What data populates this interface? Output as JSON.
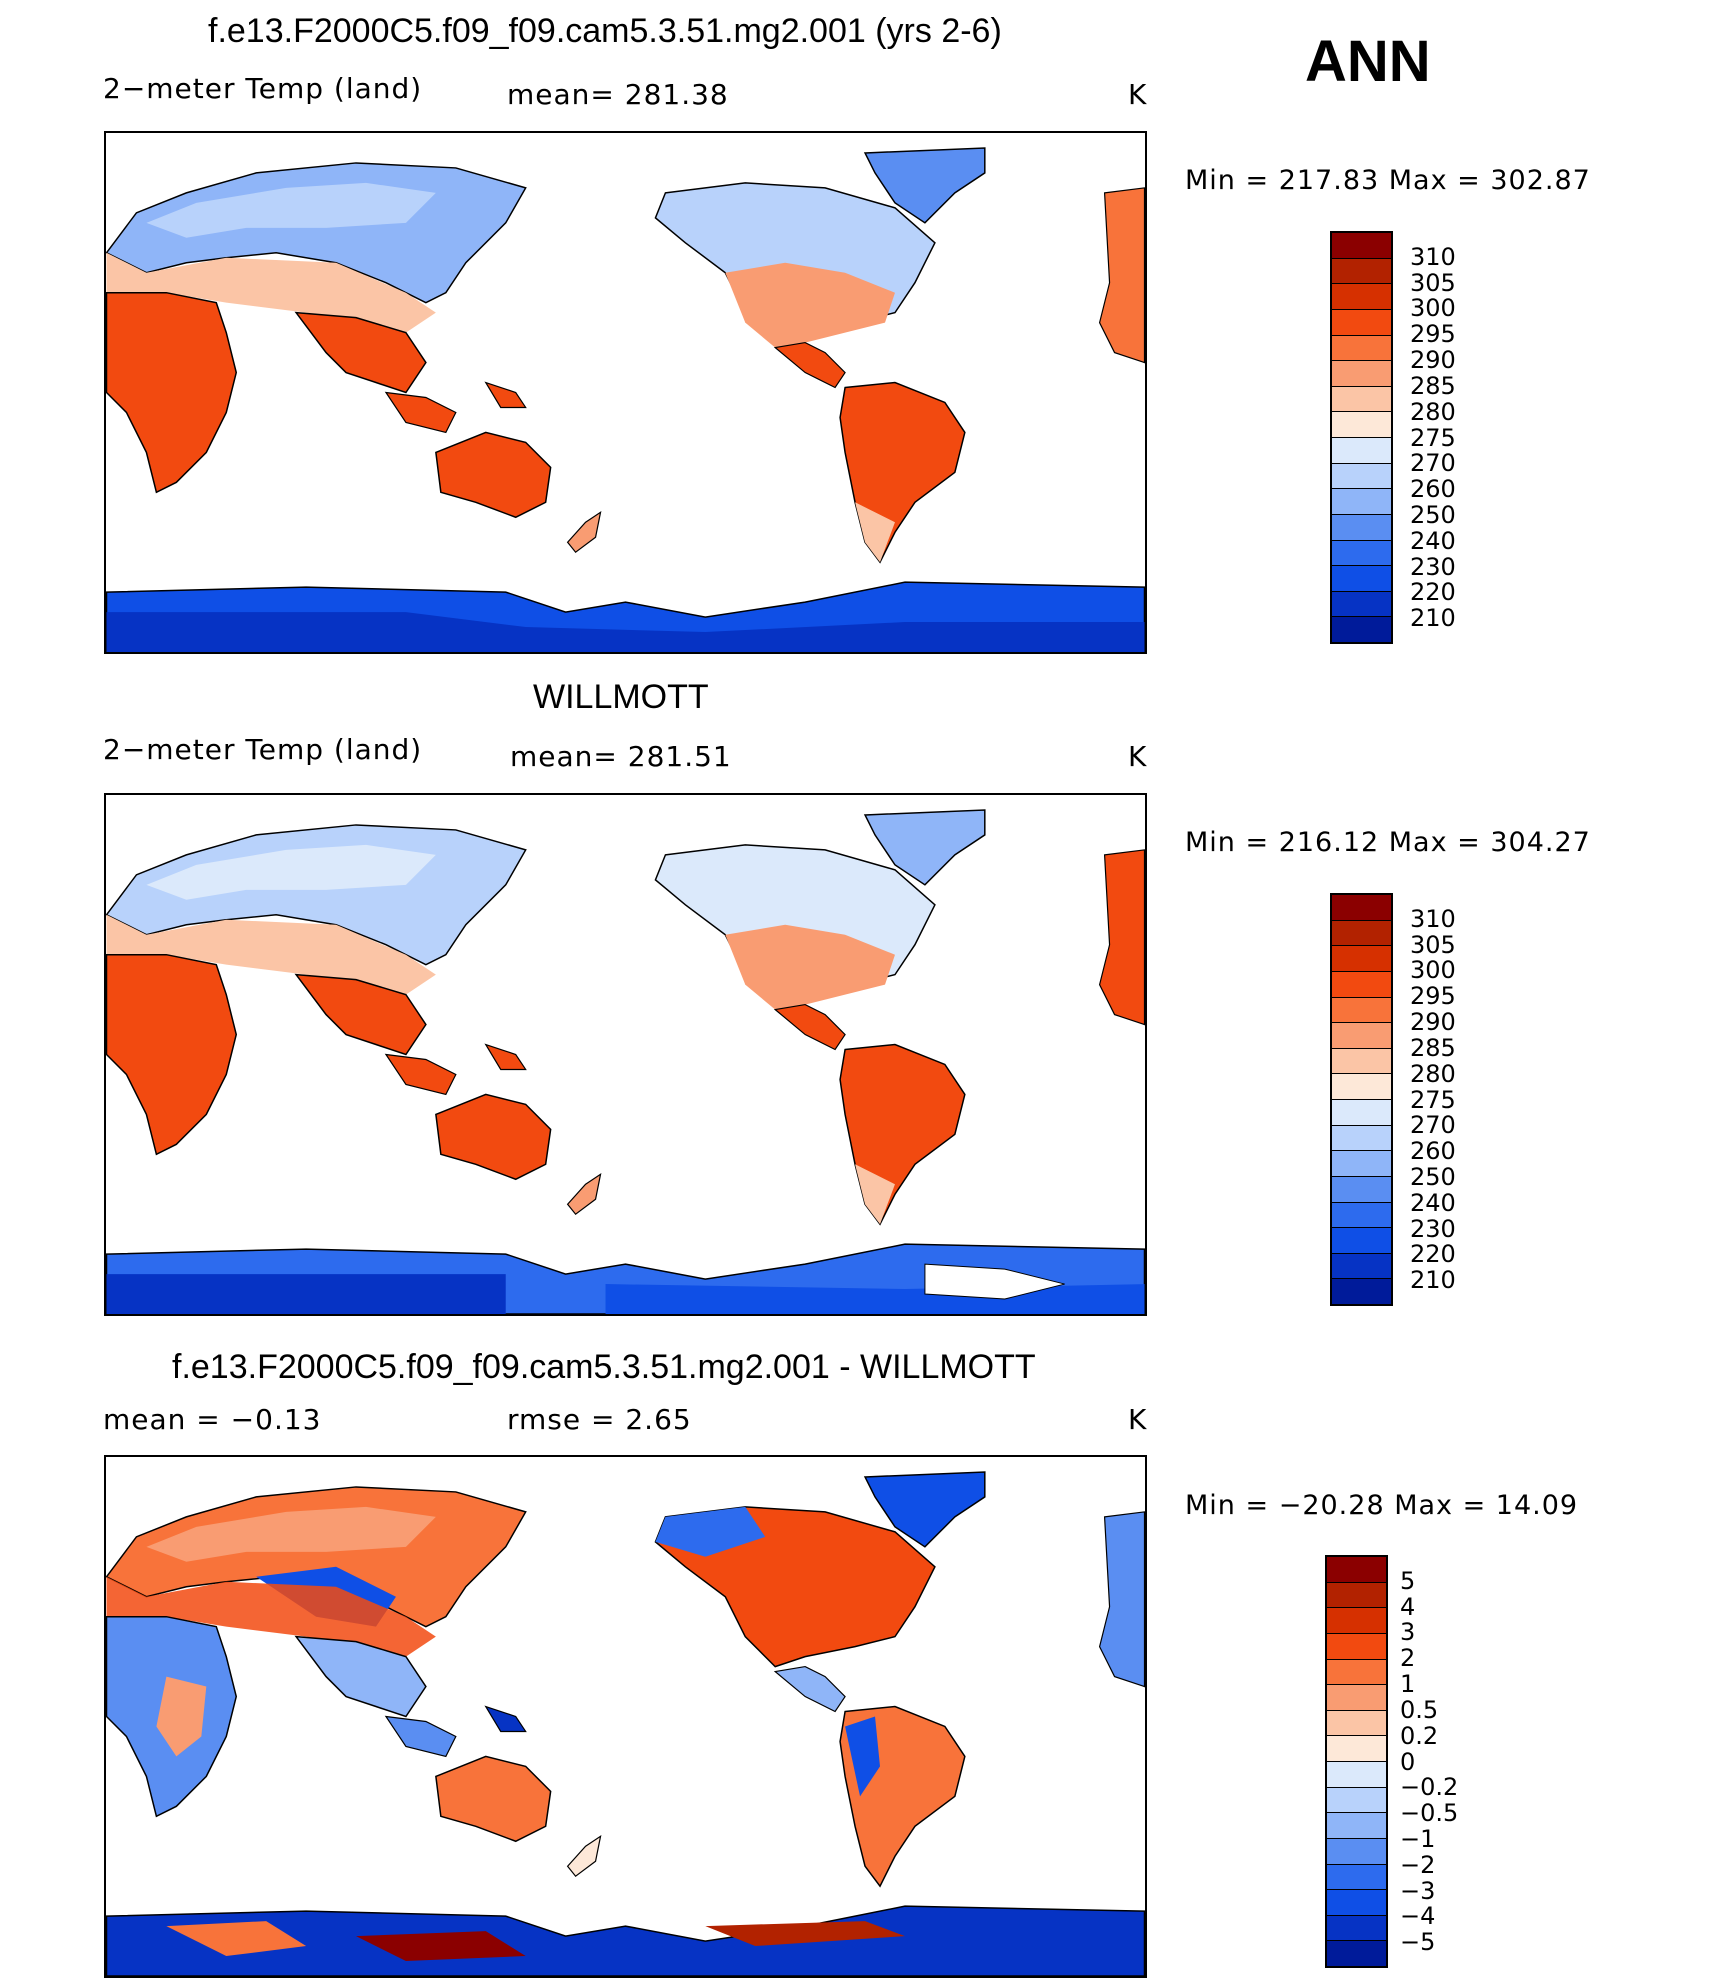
{
  "season": "ANN",
  "palettes": {
    "temp": [
      "#8b0000",
      "#b22200",
      "#d63000",
      "#f24a10",
      "#f8733a",
      "#f99c72",
      "#fbc5a6",
      "#fde8d8",
      "#dbe9fb",
      "#b8d2fb",
      "#8fb5f8",
      "#5a8ef2",
      "#2d6bee",
      "#0f4fe6",
      "#0633c4",
      "#001b9a"
    ],
    "diff": [
      "#8b0000",
      "#b22200",
      "#d63000",
      "#f24a10",
      "#f8733a",
      "#f99c72",
      "#fbc5a6",
      "#fde8d8",
      "#dbe9fb",
      "#b8d2fb",
      "#8fb5f8",
      "#5a8ef2",
      "#2d6bee",
      "#0f4fe6",
      "#0633c4",
      "#001b9a"
    ]
  },
  "panels": [
    {
      "id": "model",
      "title": "f.e13.F2000C5.f09_f09.cam5.3.51.mg2.001 (yrs 2-6)",
      "left_label": "2−meter Temp (land)",
      "center_label": "mean=  281.38",
      "unit": "K",
      "minmax": "Min  =  217.83  Max  =  302.87",
      "colorbar_labels": [
        "310",
        "305",
        "300",
        "295",
        "290",
        "285",
        "280",
        "275",
        "270",
        "260",
        "250",
        "240",
        "230",
        "220",
        "210"
      ]
    },
    {
      "id": "obs",
      "title": "WILLMOTT",
      "left_label": "2−meter Temp (land)",
      "center_label": "mean=  281.51",
      "unit": "K",
      "minmax": "Min  =  216.12  Max  =  304.27",
      "colorbar_labels": [
        "310",
        "305",
        "300",
        "295",
        "290",
        "285",
        "280",
        "275",
        "270",
        "260",
        "250",
        "240",
        "230",
        "220",
        "210"
      ]
    },
    {
      "id": "diff",
      "title": "f.e13.F2000C5.f09_f09.cam5.3.51.mg2.001 - WILLMOTT",
      "left_label": "mean  =    −0.13",
      "center_label": "rmse  =     2.65",
      "unit": "K",
      "minmax": "Min  =  −20.28  Max  =    14.09",
      "colorbar_labels": [
        "5",
        "4",
        "3",
        "2",
        "1",
        "0.5",
        "0.2",
        "0",
        "−0.2",
        "−0.5",
        "−1",
        "−2",
        "−3",
        "−4",
        "−5"
      ]
    }
  ]
}
